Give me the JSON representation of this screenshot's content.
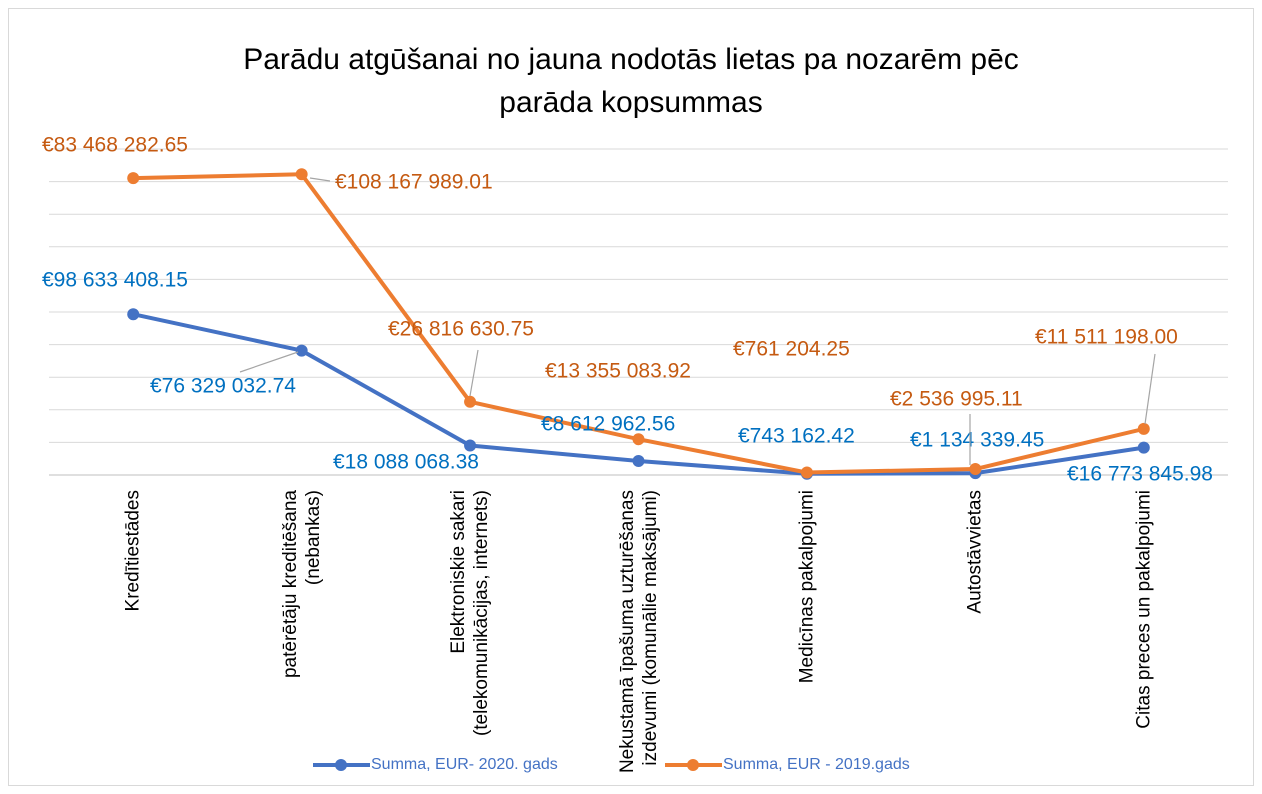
{
  "chart_data": {
    "type": "line",
    "title": "Parādu atgūšanai no jauna nodotās lietas pa nozarēm pēc parāda kopsummas",
    "stacked": true,
    "categories": [
      "Kredītiestādes",
      "patērētāju kreditēšana (nebankas)",
      "Elektroniskie sakari (telekomunikācijas, internets)",
      "Nekustamā īpašuma uzturēšanas izdevumi (komunālie maksājumi)",
      "Medicīnas pakalpojumi",
      "Autostāvvietas",
      "Citas preces un pakalpojumi"
    ],
    "series": [
      {
        "name": "Summa, EUR- 2020. gads",
        "color": "#4472c4",
        "label_color": "#0070c0",
        "values": [
          98633408.15,
          76329032.74,
          18088068.38,
          8612962.56,
          743162.42,
          1134339.45,
          16773845.98
        ],
        "value_labels": [
          "€98 633 408.15",
          "€76 329 032.74",
          "€18 088 068.38",
          "€8 612 962.56",
          "€743 162.42",
          "€1 134 339.45",
          "€16 773 845.98"
        ]
      },
      {
        "name": "Summa, EUR - 2019.gads",
        "color": "#ed7d31",
        "label_color": "#c55a11",
        "values": [
          83468282.65,
          108167989.01,
          26816630.75,
          13355083.92,
          761204.25,
          2536995.11,
          11511198.0
        ],
        "value_labels": [
          "€83 468 282.65",
          "€108 167 989.01",
          "€26 816 630.75",
          "€13 355 083.92",
          "€761 204.25",
          "€2 536 995.11",
          "€11 511 198.00"
        ]
      }
    ],
    "ylim": [
      0,
      200000000
    ],
    "yticks": [
      0,
      20000000,
      40000000,
      60000000,
      80000000,
      100000000,
      120000000,
      140000000,
      160000000,
      180000000,
      200000000
    ],
    "grid": true,
    "legend": "bottom"
  }
}
